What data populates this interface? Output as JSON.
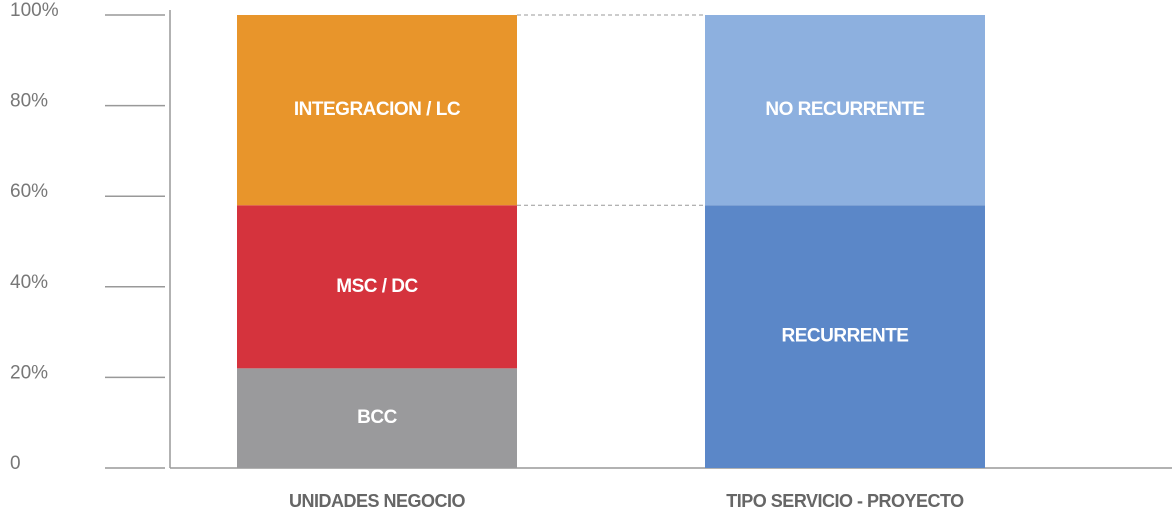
{
  "chart_data": {
    "type": "stacked_bar",
    "categories": [
      "UNIDADES NEGOCIO",
      "TIPO SERVICIO - PROYECTO"
    ],
    "series": [
      {
        "name": "BCC",
        "color": "#9a9a9c",
        "values": [
          22,
          null
        ]
      },
      {
        "name": "MSC / DC",
        "color": "#d5333d",
        "values": [
          36,
          null
        ]
      },
      {
        "name": "INTEGRACION / LC",
        "color": "#e8952b",
        "values": [
          42,
          null
        ]
      },
      {
        "name": "RECURRENTE",
        "color": "#5b87c8",
        "values": [
          null,
          58
        ]
      },
      {
        "name": "NO RECURRENTE",
        "color": "#8db0df",
        "values": [
          null,
          42
        ]
      }
    ],
    "ylim": [
      0,
      100
    ],
    "yticks": [
      0,
      {
        "value": 20,
        "label": "20%"
      },
      {
        "value": 40,
        "label": "40%"
      },
      {
        "value": 60,
        "label": "60%"
      },
      {
        "value": 80,
        "label": "80%"
      },
      {
        "value": 100,
        "label": "100%"
      }
    ]
  }
}
